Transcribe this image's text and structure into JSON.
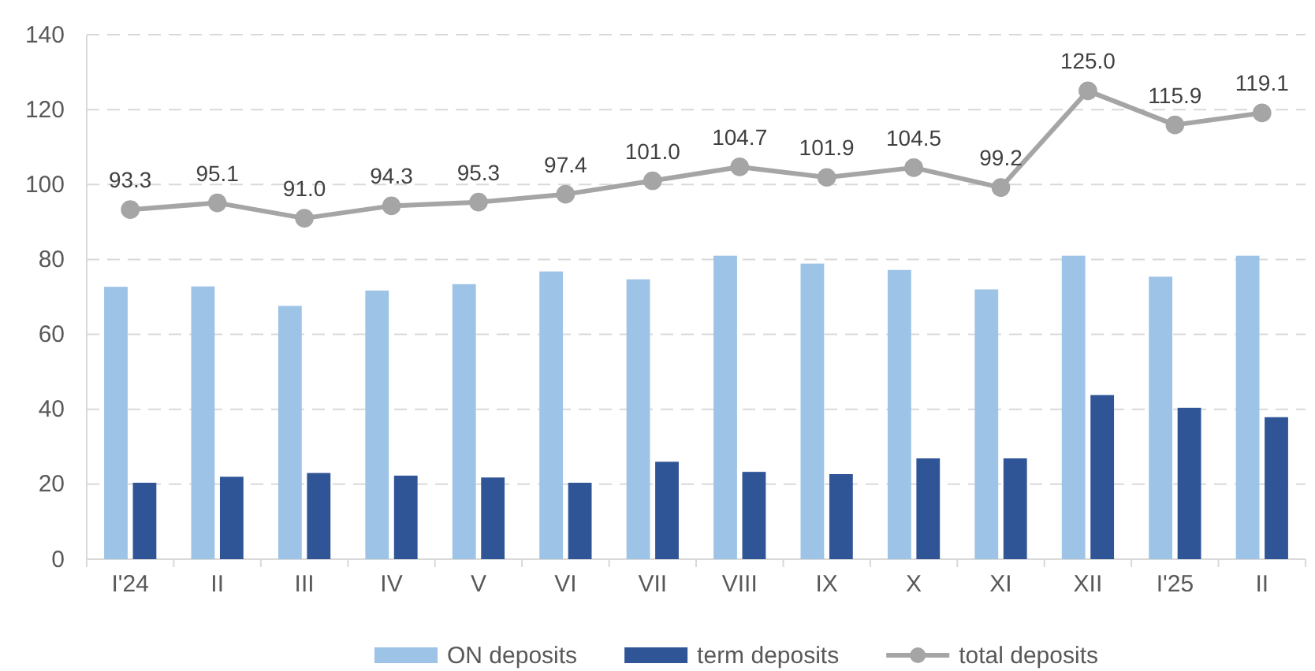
{
  "chart_data": {
    "type": "bar",
    "categories": [
      "I'24",
      "II",
      "III",
      "IV",
      "V",
      "VI",
      "VII",
      "VIII",
      "IX",
      "X",
      "XI",
      "XII",
      "I'25",
      "II"
    ],
    "series": [
      {
        "name": "ON deposits",
        "color": "#9dc3e6",
        "values": [
          72.7,
          72.8,
          67.6,
          71.7,
          73.4,
          76.8,
          74.7,
          81.0,
          78.9,
          77.2,
          72.0,
          81.0,
          75.4,
          81.0
        ]
      },
      {
        "name": "term deposits",
        "color": "#2f5597",
        "values": [
          20.4,
          22.0,
          23.0,
          22.3,
          21.8,
          20.4,
          26.0,
          23.3,
          22.7,
          26.9,
          26.9,
          43.8,
          40.4,
          37.9
        ]
      },
      {
        "name": "total deposits",
        "type": "line",
        "color": "#a5a5a5",
        "marker": "circle",
        "value_labels": [
          "93.3",
          "95.1",
          "91.0",
          "94.3",
          "95.3",
          "97.4",
          "101.0",
          "104.7",
          "101.9",
          "104.5",
          "99.2",
          "125.0",
          "115.9",
          "119.1"
        ],
        "values": [
          93.3,
          95.1,
          91.0,
          94.3,
          95.3,
          97.4,
          101.0,
          104.7,
          101.9,
          104.5,
          99.2,
          125.0,
          115.9,
          119.1
        ]
      }
    ],
    "ylim": [
      0,
      140
    ],
    "yticks": [
      0,
      20,
      40,
      60,
      80,
      100,
      120,
      140
    ],
    "grid": "y",
    "legend": "bottom"
  }
}
